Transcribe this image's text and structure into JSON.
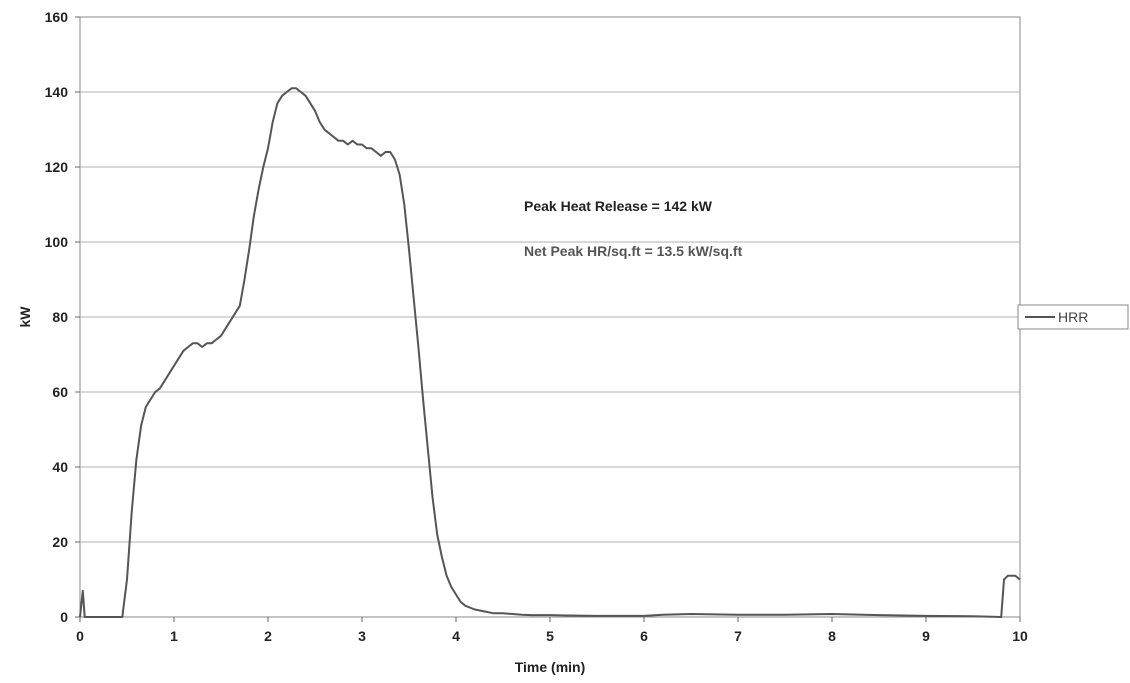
{
  "chart_data": {
    "type": "line",
    "title": "",
    "xlabel": "Time (min)",
    "ylabel": "kW",
    "xlim": [
      0,
      10
    ],
    "ylim": [
      0,
      160
    ],
    "x_ticks": [
      "0",
      "1",
      "2",
      "3",
      "4",
      "5",
      "6",
      "7",
      "8",
      "9",
      "10"
    ],
    "y_ticks": [
      "0",
      "20",
      "40",
      "60",
      "80",
      "100",
      "120",
      "140",
      "160"
    ],
    "grid": "horizontal",
    "legend_position": "right",
    "annotations": [
      "Peak Heat Release = 142 kW",
      "Net Peak HR/sq.ft = 13.5 kW/sq.ft"
    ],
    "series": [
      {
        "name": "HRR",
        "color": "#555555",
        "x": [
          0,
          0.03,
          0.05,
          0.07,
          0.1,
          0.45,
          0.5,
          0.55,
          0.6,
          0.65,
          0.7,
          0.75,
          0.8,
          0.85,
          0.9,
          0.95,
          1.0,
          1.05,
          1.1,
          1.15,
          1.2,
          1.25,
          1.3,
          1.35,
          1.4,
          1.45,
          1.5,
          1.55,
          1.6,
          1.65,
          1.7,
          1.75,
          1.8,
          1.85,
          1.9,
          1.95,
          2.0,
          2.05,
          2.1,
          2.15,
          2.2,
          2.25,
          2.3,
          2.35,
          2.4,
          2.45,
          2.5,
          2.55,
          2.6,
          2.65,
          2.7,
          2.75,
          2.8,
          2.85,
          2.9,
          2.95,
          3.0,
          3.05,
          3.1,
          3.15,
          3.2,
          3.25,
          3.3,
          3.35,
          3.4,
          3.45,
          3.5,
          3.55,
          3.6,
          3.65,
          3.7,
          3.75,
          3.8,
          3.85,
          3.9,
          3.95,
          4.0,
          4.05,
          4.1,
          4.2,
          4.3,
          4.4,
          4.5,
          4.6,
          4.7,
          4.8,
          5.0,
          5.2,
          5.5,
          6.0,
          6.2,
          6.5,
          7.0,
          7.5,
          8.0,
          8.5,
          9.0,
          9.5,
          9.8,
          9.83,
          9.87,
          9.9,
          9.95,
          10.0
        ],
        "y": [
          0,
          7,
          0,
          0,
          0,
          0,
          10,
          28,
          42,
          51,
          56,
          58,
          60,
          61,
          63,
          65,
          67,
          69,
          71,
          72,
          73,
          73,
          72,
          73,
          73,
          74,
          75,
          77,
          79,
          81,
          83,
          90,
          98,
          107,
          114,
          120,
          125,
          132,
          137,
          139,
          140,
          141,
          141,
          140,
          139,
          137,
          135,
          132,
          130,
          129,
          128,
          127,
          127,
          126,
          127,
          126,
          126,
          125,
          125,
          124,
          123,
          124,
          124,
          122,
          118,
          110,
          98,
          85,
          72,
          58,
          45,
          32,
          22,
          16,
          11,
          8,
          6,
          4,
          3,
          2,
          1.5,
          1,
          1,
          0.8,
          0.6,
          0.5,
          0.5,
          0.4,
          0.3,
          0.3,
          0.6,
          0.8,
          0.6,
          0.6,
          0.8,
          0.5,
          0.3,
          0.2,
          0,
          10,
          11,
          11,
          11,
          10
        ]
      }
    ]
  }
}
